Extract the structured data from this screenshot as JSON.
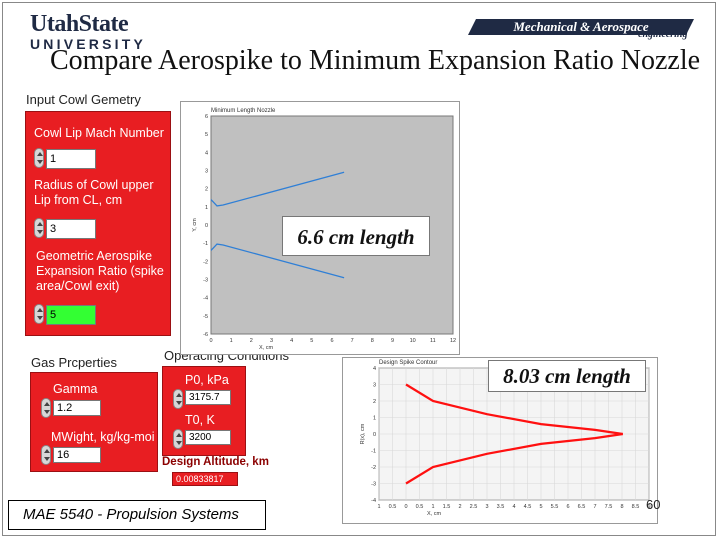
{
  "header": {
    "usu_logo_main": "UtahState",
    "usu_logo_sub": "UNIVERSITY",
    "dept_logo_text": "Mechanical & Aerospace",
    "dept_logo_sub": "engineering"
  },
  "slide": {
    "title": "Compare Aerospike to Minimum Expansion Ratio Nozzle",
    "footer": "MAE 5540 - Propulsion Systems",
    "page_number": "60"
  },
  "cowl_panel": {
    "heading": "Input Cowl Gemetry",
    "fields": [
      {
        "label": "Cowl Lip Mach Number",
        "value": "1"
      },
      {
        "label": "Radius of Cowl upper Lip from CL, cm",
        "value": "3"
      },
      {
        "label": "Geometric Aerospike Expansion Ratio (spike area/Cowl exit)",
        "value": "5"
      }
    ]
  },
  "gas_panel": {
    "heading": "Gas Prcperties",
    "fields": [
      {
        "label": "Gamma",
        "value": "1.2"
      },
      {
        "label": "MWight, kg/kg-moi",
        "value": "16"
      }
    ]
  },
  "operating_panel": {
    "heading": "Operacing Conditions",
    "fields": [
      {
        "label": "P0, kPa",
        "value": "3175.7"
      },
      {
        "label": "T0, K",
        "value": "3200"
      }
    ],
    "design_altitude_label": "Design Altitude, km",
    "design_altitude_value": "0.00833817"
  },
  "colors": {
    "panel_red": "#e81e22",
    "chart_gray": "#c0c0c0",
    "series_blue": "#2f7fd6",
    "series_red": "#ff1010"
  },
  "chart_data": [
    {
      "type": "line",
      "title": "Minimum Length Nozzle",
      "xlabel": "X, cm",
      "ylabel": "Y, cm",
      "x_ticks": [
        "0",
        "1",
        "2",
        "3",
        "4",
        "5",
        "6",
        "7",
        "8",
        "9",
        "10",
        "11",
        "12"
      ],
      "y_ticks": [
        "6",
        "5",
        "4",
        "3",
        "2",
        "1",
        "0",
        "-1",
        "-2",
        "-3",
        "-4",
        "-5",
        "-6"
      ],
      "xlim": [
        0,
        12
      ],
      "ylim": [
        -6,
        6
      ],
      "series": [
        {
          "name": "upper wall",
          "x": [
            0,
            0.3,
            0.6,
            6.6
          ],
          "y": [
            1.4,
            1.05,
            1.1,
            2.9
          ]
        },
        {
          "name": "lower wall",
          "x": [
            0,
            0.3,
            0.6,
            6.6
          ],
          "y": [
            -1.4,
            -1.05,
            -1.1,
            -2.9
          ]
        }
      ],
      "annotation": "6.6 cm length"
    },
    {
      "type": "line",
      "title": "Design Spike Contour",
      "xlabel": "X, cm",
      "ylabel": "R(x), cm",
      "x_ticks": [
        "1",
        "0.5",
        "0",
        "0.5",
        "1",
        "1.5",
        "2",
        "2.5",
        "3",
        "3.5",
        "4",
        "4.5",
        "5",
        "5.5",
        "6",
        "6.5",
        "7",
        "7.5",
        "8",
        "8.5",
        "9"
      ],
      "y_ticks": [
        "4",
        "3",
        "2",
        "1",
        "0",
        "-1",
        "-2",
        "-3",
        "-4"
      ],
      "xlim": [
        -1,
        9
      ],
      "ylim": [
        -4,
        4
      ],
      "series": [
        {
          "name": "spike upper",
          "x": [
            0,
            1,
            3,
            5,
            7,
            8.03
          ],
          "y": [
            3,
            2,
            1.2,
            0.6,
            0.25,
            0
          ]
        },
        {
          "name": "spike lower",
          "x": [
            0,
            1,
            3,
            5,
            7,
            8.03
          ],
          "y": [
            -3,
            -2,
            -1.2,
            -0.6,
            -0.25,
            0
          ]
        }
      ],
      "annotation": "8.03 cm length"
    }
  ]
}
